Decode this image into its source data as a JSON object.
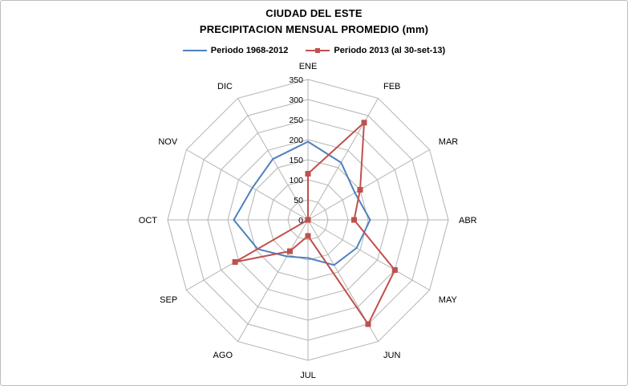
{
  "title": {
    "line1": "CIUDAD DEL ESTE",
    "line2": "PRECIPITACION MENSUAL PROMEDIO (mm)"
  },
  "legend": [
    {
      "label": "Periodo 1968-2012"
    },
    {
      "label": "Periodo 2013 (al 30-set-13)"
    }
  ],
  "chart_data": {
    "type": "radar",
    "title": "CIUDAD DEL ESTE - PRECIPITACION MENSUAL PROMEDIO (mm)",
    "categories": [
      "ENE",
      "FEB",
      "MAR",
      "ABR",
      "MAY",
      "JUN",
      "JUL",
      "AGO",
      "SEP",
      "OCT",
      "NOV",
      "DIC"
    ],
    "series": [
      {
        "name": "Periodo 1968-2012",
        "color": "#4F81BD",
        "marker": "none",
        "values": [
          195,
          165,
          135,
          155,
          140,
          130,
          95,
          105,
          145,
          185,
          160,
          175
        ]
      },
      {
        "name": "Periodo 2013 (al 30-set-13)",
        "color": "#C0504D",
        "marker": "square",
        "values": [
          115,
          280,
          150,
          115,
          250,
          300,
          40,
          90,
          210,
          0,
          0,
          0
        ]
      }
    ],
    "axis": {
      "min": 0,
      "max": 350,
      "step": 50,
      "ticks": [
        0,
        50,
        100,
        150,
        200,
        250,
        300,
        350
      ]
    },
    "gridline_color": "#b3b3b3",
    "grid": true,
    "legend_position": "top"
  }
}
